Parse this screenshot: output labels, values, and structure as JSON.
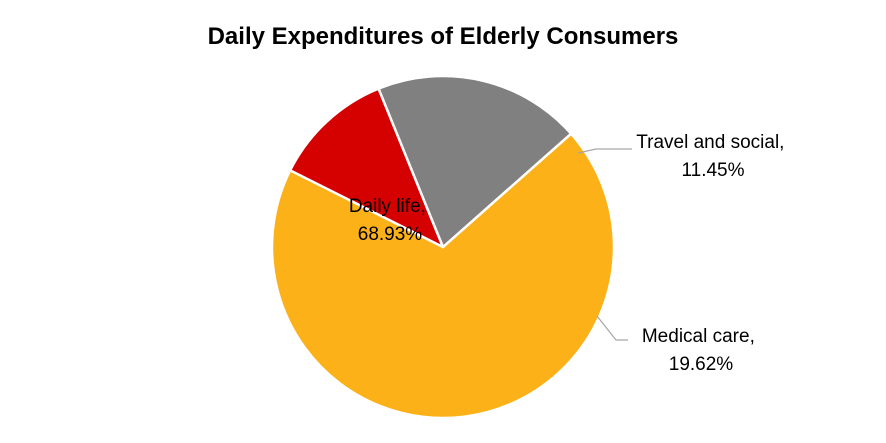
{
  "chart_data": {
    "type": "pie",
    "title": "Daily Expenditures of Elderly Consumers",
    "slices": [
      {
        "label": "Daily life,",
        "value_label": "68.93%",
        "value": 68.93,
        "color": "#FBB117"
      },
      {
        "label": "Travel and social,",
        "value_label": "11.45%",
        "value": 11.45,
        "color": "#D50000"
      },
      {
        "label": "Medical care,",
        "value_label": "19.62%",
        "value": 19.62,
        "color": "#808080"
      }
    ],
    "legend": "none"
  }
}
